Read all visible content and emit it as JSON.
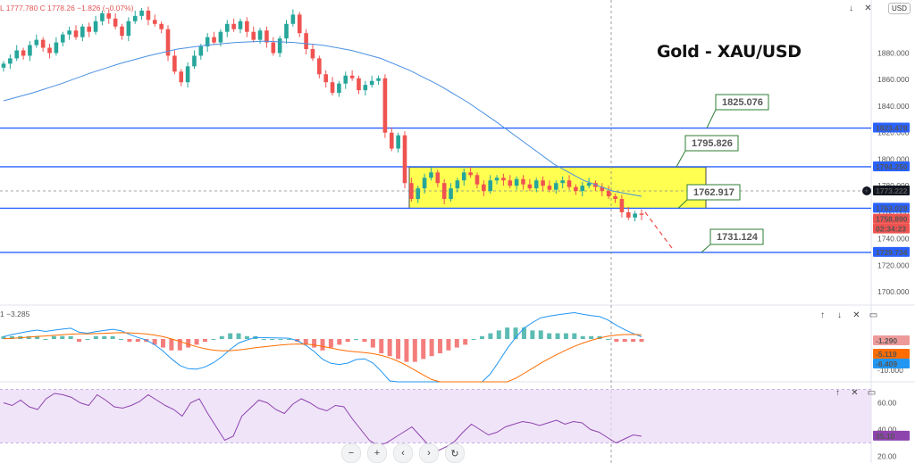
{
  "header": {
    "ohlc_text": "L 1777.780  C 1778.26  −1.826 (−0.07%)",
    "currency": "USD"
  },
  "title": "Gold - XAU/USD",
  "main_controls": [
    "↓",
    "✕"
  ],
  "macd_controls": [
    "↑",
    "↓",
    "✕",
    "▭"
  ],
  "rsi_controls": [
    "↑",
    "✕",
    "▭"
  ],
  "nav_buttons": [
    "−",
    "+",
    "‹",
    "›",
    "↻"
  ],
  "macd_header": "1 −3.285",
  "colors": {
    "bull": "#26a69a",
    "bear": "#ef5350",
    "level_line": "#2962ff",
    "zone": "#ffff33",
    "ma": "#4a90e2",
    "annot_border": "#2e7d32",
    "annot_text": "#1a1aff",
    "rsi": "#8e44ad",
    "rsi_band": "#e9d8f7",
    "macd_line": "#2196f3",
    "signal_line": "#ff6d00"
  },
  "chart_data": [
    {
      "type": "candlestick",
      "title": "Gold - XAU/USD",
      "ylim": [
        1690,
        1920
      ],
      "y_ticks": [
        1700,
        1720,
        1740,
        1760,
        1780,
        1800,
        1820,
        1840,
        1860,
        1880
      ],
      "price_levels": [
        1823.479,
        1794.25,
        1763.029,
        1729.734
      ],
      "level_callouts": [
        "1825.076",
        "1795.826",
        "1762.917",
        "1731.124"
      ],
      "axis_badges": [
        {
          "value": "1823.479",
          "color": "#2962ff"
        },
        {
          "value": "1794.250",
          "color": "#2962ff"
        },
        {
          "value": "1773.222",
          "color": "#131722"
        },
        {
          "value": "1763.029",
          "color": "#2962ff"
        },
        {
          "value": "1758.890",
          "color": "#ef5350"
        },
        {
          "value": "02:34:23",
          "color": "#ef5350"
        },
        {
          "value": "1729.734",
          "color": "#2962ff"
        }
      ],
      "consolidation_zone": [
        1763,
        1794
      ],
      "moving_average": [
        1844,
        1850,
        1857,
        1865,
        1872,
        1878,
        1883,
        1886,
        1888,
        1889,
        1888,
        1886,
        1882,
        1876,
        1867,
        1856,
        1843,
        1828,
        1812,
        1796,
        1784,
        1776,
        1772
      ],
      "projection": [
        1760,
        1733
      ],
      "closes": [
        1872,
        1876,
        1882,
        1878,
        1886,
        1890,
        1884,
        1880,
        1888,
        1894,
        1897,
        1892,
        1900,
        1896,
        1904,
        1910,
        1906,
        1900,
        1893,
        1904,
        1908,
        1912,
        1905,
        1902,
        1898,
        1878,
        1866,
        1858,
        1870,
        1878,
        1885,
        1892,
        1888,
        1896,
        1902,
        1898,
        1904,
        1896,
        1890,
        1897,
        1888,
        1880,
        1891,
        1902,
        1909,
        1895,
        1883,
        1876,
        1864,
        1858,
        1850,
        1857,
        1863,
        1861,
        1852,
        1856,
        1859,
        1861,
        1820,
        1808,
        1818,
        1782,
        1770,
        1778,
        1786,
        1790,
        1782,
        1770,
        1778,
        1784,
        1790,
        1788,
        1781,
        1776,
        1784,
        1786,
        1784,
        1780,
        1785,
        1781,
        1778,
        1784,
        1780,
        1777,
        1782,
        1784,
        1779,
        1776,
        1780,
        1782,
        1779,
        1776,
        1772,
        1770,
        1760,
        1756,
        1759,
        1758
      ]
    },
    {
      "type": "bar",
      "title": "MACD",
      "y_ticks": [
        0,
        -10
      ],
      "axis_badges": [
        {
          "value": "-1.290",
          "color": "#ef9a9a"
        },
        {
          "value": "-5.119",
          "color": "#ff6d00"
        },
        {
          "value": "-6.409",
          "color": "#2196f3"
        }
      ],
      "histogram": [
        1,
        1,
        1,
        1,
        1,
        0,
        1,
        1,
        1,
        -1,
        0,
        1,
        1,
        1,
        0,
        -1,
        -1,
        -1,
        -2,
        -3,
        -4,
        -4,
        -3,
        -2,
        -1,
        0,
        1,
        2,
        2,
        1,
        1,
        0,
        0,
        0,
        0,
        -1,
        -2,
        -3,
        -4,
        -3,
        -2,
        -1,
        0,
        -1,
        -3,
        -5,
        -6,
        -7,
        -8,
        -8,
        -7,
        -6,
        -5,
        -4,
        -3,
        -2,
        0,
        1,
        2,
        3,
        4,
        4,
        4,
        3,
        3,
        2,
        2,
        2,
        2,
        1,
        1,
        1,
        0,
        -1,
        -1,
        -1,
        -1
      ]
    },
    {
      "type": "line",
      "title": "RSI",
      "ylim": [
        15,
        75
      ],
      "y_ticks": [
        20,
        40,
        60
      ],
      "band": [
        30,
        70
      ],
      "axis_badges": [
        {
          "value": "35.10",
          "color": "#8e44ad"
        }
      ],
      "values": [
        60,
        58,
        62,
        57,
        55,
        63,
        67,
        66,
        64,
        60,
        58,
        66,
        62,
        57,
        56,
        58,
        61,
        66,
        62,
        58,
        55,
        50,
        60,
        63,
        52,
        42,
        32,
        35,
        50,
        56,
        62,
        60,
        55,
        52,
        59,
        63,
        60,
        56,
        54,
        58,
        57,
        48,
        40,
        32,
        28,
        30,
        34,
        38,
        42,
        35,
        28,
        24,
        27,
        31,
        38,
        44,
        40,
        36,
        38,
        42,
        44,
        46,
        45,
        43,
        45,
        47,
        44,
        46,
        45,
        40,
        38,
        34,
        30,
        33,
        36,
        35
      ]
    }
  ]
}
